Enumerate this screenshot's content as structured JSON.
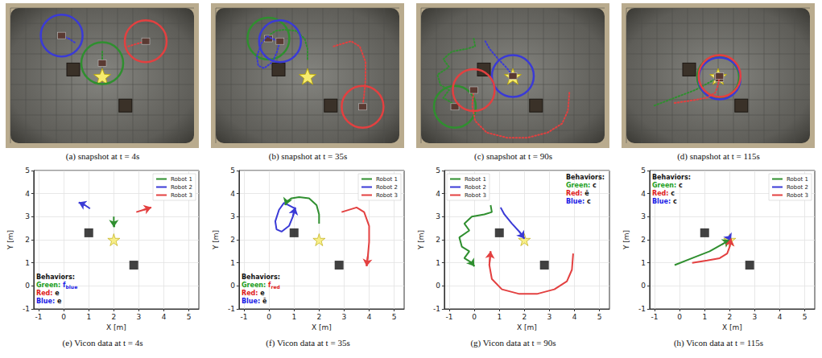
{
  "photos": [
    {
      "caption": "(a) snapshot at t = 4s"
    },
    {
      "caption": "(b) snapshot at t = 35s"
    },
    {
      "caption": "(c) snapshot at t = 90s"
    },
    {
      "caption": "(d) snapshot at t = 115s"
    }
  ],
  "chart_data": [
    {
      "type": "line",
      "title": "(e) Vicon data at t = 4s",
      "xlabel": "X [m]",
      "ylabel": "Y [m]",
      "xlim": [
        -1.2,
        5.4
      ],
      "ylim": [
        -1,
        5
      ],
      "xticks": [
        -1,
        0,
        1,
        2,
        3,
        4,
        5
      ],
      "yticks": [
        -1,
        0,
        1,
        2,
        3,
        4,
        5
      ],
      "grid": true,
      "legend": "top-right",
      "series": [
        {
          "name": "Robot 1",
          "color": "#2f8f2f",
          "marker": "arrow",
          "line_style": "solid",
          "x": [
            2.0,
            2.0,
            2.0
          ],
          "y": [
            3.0,
            2.8,
            2.55
          ]
        },
        {
          "name": "Robot 2",
          "color": "#3a3ad6",
          "marker": "arrow",
          "line_style": "solid",
          "x": [
            1.05,
            0.85,
            0.6
          ],
          "y": [
            3.35,
            3.5,
            3.62
          ]
        },
        {
          "name": "Robot 3",
          "color": "#e34040",
          "marker": "arrow",
          "line_style": "solid",
          "x": [
            2.9,
            3.2,
            3.5
          ],
          "y": [
            3.2,
            3.3,
            3.4
          ]
        }
      ],
      "obstacles": {
        "x": [
          1,
          2.8
        ],
        "y": [
          2.3,
          0.9
        ],
        "color": "#111111"
      },
      "goal": {
        "x": [
          2
        ],
        "y": [
          2
        ],
        "color": "#f7ec6e"
      },
      "behaviors_title": "Behaviors:",
      "behaviors": [
        {
          "label": "Green:",
          "color": "#22a022",
          "behavior": "f",
          "subscript": "blue"
        },
        {
          "label": "Red:",
          "color": "#e01b1b",
          "behavior": "e"
        },
        {
          "label": "Blue:",
          "color": "#1a1ae6",
          "behavior": "e"
        }
      ]
    },
    {
      "type": "line",
      "title": "(f) Vicon data at t = 35s",
      "xlabel": "X [m]",
      "ylabel": "Y [m]",
      "xlim": [
        -1.2,
        5.4
      ],
      "ylim": [
        -1,
        5
      ],
      "xticks": [
        -1,
        0,
        1,
        2,
        3,
        4,
        5
      ],
      "yticks": [
        -1,
        0,
        1,
        2,
        3,
        4,
        5
      ],
      "grid": true,
      "legend": "top-right",
      "series": [
        {
          "name": "Robot 1",
          "color": "#2f8f2f",
          "marker": "arrow",
          "line_style": "solid",
          "x": [
            2.0,
            2.0,
            1.9,
            1.6,
            1.2,
            0.9,
            0.7,
            0.65
          ],
          "y": [
            2.7,
            3.1,
            3.5,
            3.8,
            3.85,
            3.8,
            3.65,
            3.5
          ]
        },
        {
          "name": "Robot 2",
          "color": "#3a3ad6",
          "marker": "arrow",
          "line_style": "solid",
          "x": [
            1.05,
            0.6,
            0.4,
            0.25,
            0.3,
            0.5,
            0.8,
            0.95,
            1.05
          ],
          "y": [
            3.35,
            3.6,
            3.3,
            2.8,
            2.45,
            2.35,
            2.6,
            3.0,
            3.4
          ]
        },
        {
          "name": "Robot 3",
          "color": "#e34040",
          "marker": "arrow",
          "line_style": "solid",
          "x": [
            2.9,
            3.5,
            3.8,
            4.0,
            4.0,
            3.95,
            3.9
          ],
          "y": [
            3.2,
            3.4,
            3.2,
            2.6,
            1.9,
            1.3,
            0.85
          ]
        }
      ],
      "obstacles": {
        "x": [
          1,
          2.8
        ],
        "y": [
          2.3,
          0.9
        ],
        "color": "#111111"
      },
      "goal": {
        "x": [
          2
        ],
        "y": [
          2
        ],
        "color": "#f7ec6e"
      },
      "behaviors_title": "Behaviors:",
      "behaviors": [
        {
          "label": "Green:",
          "color": "#22a022",
          "behavior": "f",
          "subscript": "red"
        },
        {
          "label": "Red:",
          "color": "#e01b1b",
          "behavior": "e"
        },
        {
          "label": "Blue:",
          "color": "#1a1ae6",
          "behavior": "ẽ"
        }
      ]
    },
    {
      "type": "line",
      "title": "(g) Vicon data at t = 90s",
      "xlabel": "X [m]",
      "ylabel": "Y [m]",
      "xlim": [
        -1.2,
        5.4
      ],
      "ylim": [
        -1,
        5
      ],
      "xticks": [
        -1,
        0,
        1,
        2,
        3,
        4,
        5
      ],
      "yticks": [
        -1,
        0,
        1,
        2,
        3,
        4,
        5
      ],
      "grid": true,
      "legend": "top-left",
      "series": [
        {
          "name": "Robot 1",
          "color": "#2f8f2f",
          "marker": "arrow",
          "line_style": "solid",
          "x": [
            0.65,
            0.7,
            0.4,
            -0.1,
            -0.4,
            -0.2,
            -0.6,
            -0.5,
            -0.2,
            -0.4,
            -0.1,
            0.0
          ],
          "y": [
            3.5,
            3.2,
            3.1,
            3.0,
            2.7,
            2.4,
            2.1,
            1.7,
            1.5,
            1.2,
            1.0,
            0.85
          ]
        },
        {
          "name": "Robot 2",
          "color": "#3a3ad6",
          "marker": "arrow",
          "line_style": "solid",
          "x": [
            1.05,
            1.2,
            1.5,
            1.8,
            2.0
          ],
          "y": [
            3.4,
            3.1,
            2.7,
            2.35,
            2.05
          ]
        },
        {
          "name": "Robot 3",
          "color": "#e34040",
          "marker": "arrow",
          "line_style": "solid",
          "x": [
            3.95,
            3.9,
            3.7,
            3.2,
            2.5,
            1.8,
            1.1,
            0.7,
            0.6,
            0.65
          ],
          "y": [
            1.4,
            0.7,
            0.2,
            -0.15,
            -0.35,
            -0.35,
            -0.15,
            0.3,
            0.9,
            1.5
          ]
        }
      ],
      "obstacles": {
        "x": [
          1,
          2.8
        ],
        "y": [
          2.3,
          0.9
        ],
        "color": "#111111"
      },
      "goal": {
        "x": [
          2
        ],
        "y": [
          2
        ],
        "color": "#f7ec6e"
      },
      "behaviors_title": "Behaviors:",
      "behaviors": [
        {
          "label": "Green:",
          "color": "#22a022",
          "behavior": "c"
        },
        {
          "label": "Red:",
          "color": "#e01b1b",
          "behavior": "ẽ"
        },
        {
          "label": "Blue:",
          "color": "#1a1ae6",
          "behavior": "c"
        }
      ]
    },
    {
      "type": "line",
      "title": "(h) Vicon data at t = 115s",
      "xlabel": "X [m]",
      "ylabel": "Y [m]",
      "xlim": [
        -1.2,
        5.4
      ],
      "ylim": [
        -1,
        5
      ],
      "xticks": [
        -1,
        0,
        1,
        2,
        3,
        4,
        5
      ],
      "yticks": [
        -1,
        0,
        1,
        2,
        3,
        4,
        5
      ],
      "grid": true,
      "legend": "top-right",
      "series": [
        {
          "name": "Robot 1",
          "color": "#2f8f2f",
          "marker": "arrow",
          "line_style": "solid",
          "x": [
            -0.2,
            0.5,
            1.2,
            1.7,
            2.0
          ],
          "y": [
            0.9,
            1.2,
            1.5,
            1.8,
            2.0
          ]
        },
        {
          "name": "Robot 2",
          "color": "#3a3ad6",
          "marker": "arrow",
          "line_style": "solid",
          "x": [
            2.0,
            2.0,
            2.05
          ],
          "y": [
            2.15,
            2.05,
            1.95
          ]
        },
        {
          "name": "Robot 3",
          "color": "#e34040",
          "marker": "arrow",
          "line_style": "solid",
          "x": [
            0.5,
            1.1,
            1.6,
            1.9,
            2.0,
            2.05
          ],
          "y": [
            1.0,
            1.1,
            1.2,
            1.4,
            1.7,
            2.05
          ]
        }
      ],
      "obstacles": {
        "x": [
          1,
          2.8
        ],
        "y": [
          2.3,
          0.9
        ],
        "color": "#111111"
      },
      "goal": {
        "x": [
          2
        ],
        "y": [
          2
        ],
        "color": "#f7ec6e"
      },
      "behaviors_title": "Behaviors:",
      "behaviors": [
        {
          "label": "Green:",
          "color": "#22a022",
          "behavior": "c"
        },
        {
          "label": "Red:",
          "color": "#e01b1b",
          "behavior": "c"
        },
        {
          "label": "Blue:",
          "color": "#1a1ae6",
          "behavior": "c"
        }
      ]
    }
  ]
}
